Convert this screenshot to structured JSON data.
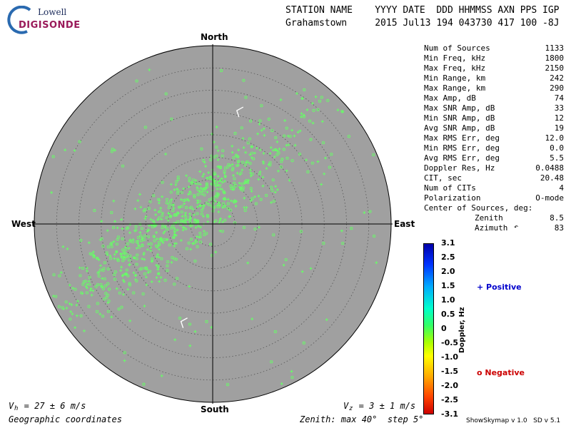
{
  "logo": {
    "line1": "Lowell",
    "line2": "DIGISONDE"
  },
  "header": {
    "line1": "STATION NAME    YYYY DATE  DDD HHMMSS AXN PPS IGP",
    "line2": "Grahamstown     2015 Jul13 194 043730 417 100 -8J"
  },
  "stats": [
    {
      "label": "Num of Sources",
      "value": "1133"
    },
    {
      "label": "Min Freq, kHz",
      "value": "1800"
    },
    {
      "label": "Max Freq, kHz",
      "value": "2150"
    },
    {
      "label": "Min Range, km",
      "value": "242"
    },
    {
      "label": "Max Range, km",
      "value": "290"
    },
    {
      "label": "Max Amp, dB",
      "value": "74"
    },
    {
      "label": "Max SNR Amp, dB",
      "value": "33"
    },
    {
      "label": "Min SNR Amp, dB",
      "value": "12"
    },
    {
      "label": "Avg SNR Amp, dB",
      "value": "19"
    },
    {
      "label": "Max RMS Err, deg",
      "value": "12.0"
    },
    {
      "label": "Min RMS Err, deg",
      "value": "0.0"
    },
    {
      "label": "Avg RMS Err, deg",
      "value": "5.5"
    },
    {
      "label": "Doppler Res, Hz",
      "value": "0.0488"
    },
    {
      "label": "CIT, sec",
      "value": "20.48"
    },
    {
      "label": "Num of CITs",
      "value": "4"
    },
    {
      "label": "Polarization",
      "value": "O-mode"
    }
  ],
  "center": {
    "title": "Center of Sources, deg:",
    "zenith_label": "Zenith",
    "zenith_value": "8.5",
    "azimuth_label": "Azimuth",
    "azimuth_value": "83"
  },
  "directions": {
    "north": "North",
    "south": "South",
    "east": "East",
    "west": "West"
  },
  "colorbar": {
    "label": "Doppler, Hz",
    "ticks": [
      "3.1",
      "2.5",
      "2.0",
      "1.5",
      "1.0",
      "0.5",
      "0",
      "-0.5",
      "-1.0",
      "-1.5",
      "-2.0",
      "-2.5",
      "-3.1"
    ],
    "range": [
      -3.1,
      3.1
    ]
  },
  "legend": {
    "positive": "+ Positive",
    "negative": "o Negative"
  },
  "footer": {
    "vh": "V  = 27 ± 6 m/s",
    "vz": "V  = 3 ± 1 m/s",
    "vh_sub": "h",
    "vz_sub": "z",
    "coords": "Geographic coordinates",
    "zenith": "Zenith: max 40°  step 5°",
    "version": "ShowSkymap v 1.0   SD v 5.1"
  },
  "chart_data": {
    "type": "scatter",
    "projection": "polar-skymap",
    "zenith_max_deg": 40,
    "zenith_step_deg": 5,
    "background": "#a0a0a0",
    "grid": true,
    "marker_color": "#66ff66",
    "cluster": {
      "center_zenith_deg": 8.5,
      "center_azimuth_deg": 83
    },
    "num_sources": 1133,
    "vector_markers": [
      {
        "zenith_deg": 26,
        "azimuth_deg": 12
      },
      {
        "zenith_deg": 23,
        "azimuth_deg": 198
      }
    ]
  }
}
